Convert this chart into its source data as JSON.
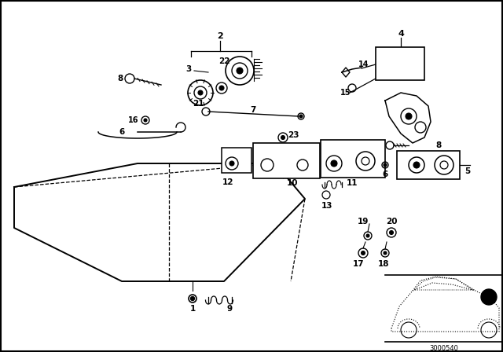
{
  "background_color": "#ffffff",
  "border_color": "#000000",
  "diagram_code": "3000540",
  "fig_width": 6.4,
  "fig_height": 4.48,
  "dpi": 100
}
